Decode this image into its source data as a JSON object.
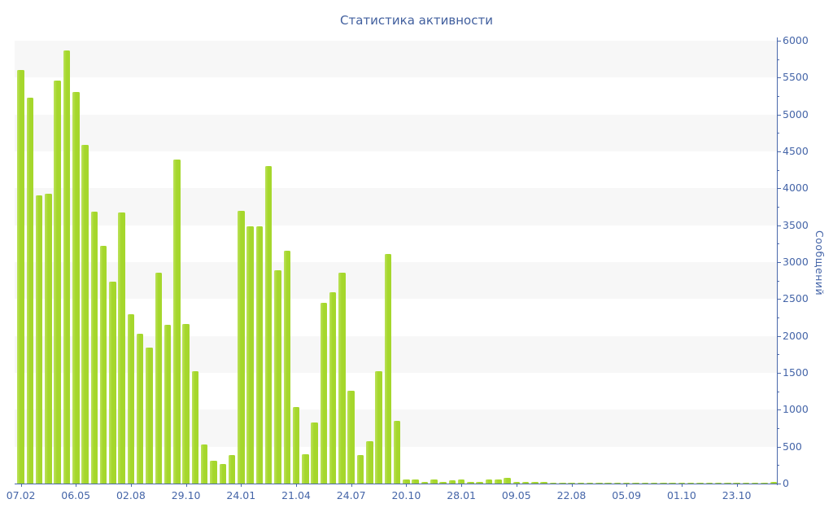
{
  "chart_data": {
    "type": "bar",
    "title": "Статистика активности",
    "ylabel": "Сообщений",
    "xlabel": "",
    "ylim": [
      0,
      6000
    ],
    "grid": "alternating-horizontal-stripes",
    "legend_position": "none",
    "y_tick_step": 500,
    "y_minor_tick_step": 250,
    "y_tick_labels": [
      "0",
      "500",
      "1000",
      "1500",
      "2000",
      "2500",
      "3000",
      "3500",
      "4000",
      "4500",
      "5000",
      "5500",
      "6000"
    ],
    "x_tick_labels": [
      "07.02",
      "06.05",
      "02.08",
      "29.10",
      "24.01",
      "21.04",
      "24.07",
      "20.10",
      "28.01",
      "09.05",
      "22.08",
      "05.09",
      "01.10",
      "23.10"
    ],
    "x_tick_bar_indices": [
      0,
      6,
      12,
      18,
      24,
      30,
      36,
      42,
      48,
      54,
      60,
      66,
      72,
      78
    ],
    "values": [
      5600,
      5230,
      3900,
      3930,
      5460,
      5870,
      5300,
      4590,
      3680,
      3220,
      2740,
      3670,
      2290,
      2030,
      1840,
      2860,
      2150,
      4390,
      2160,
      1520,
      530,
      310,
      270,
      390,
      3700,
      3480,
      3480,
      4300,
      2890,
      3150,
      1040,
      400,
      830,
      2450,
      2590,
      2860,
      1260,
      390,
      570,
      1520,
      3110,
      850,
      60,
      60,
      25,
      50,
      25,
      40,
      50,
      25,
      20,
      55,
      60,
      75,
      25,
      25,
      20,
      20,
      12,
      12,
      12,
      12,
      15,
      15,
      12,
      12,
      15,
      12,
      12,
      15,
      12,
      12,
      12,
      15,
      12,
      12,
      15,
      12,
      12,
      15,
      12,
      12,
      18
    ],
    "colors": {
      "bar": "#a5d72c",
      "bar_highlight": "#bce25a",
      "axis": "#4a68ab",
      "label": "#4565a8",
      "title": "#415f9e",
      "stripe": "#f7f7f7",
      "background": "#ffffff"
    }
  }
}
